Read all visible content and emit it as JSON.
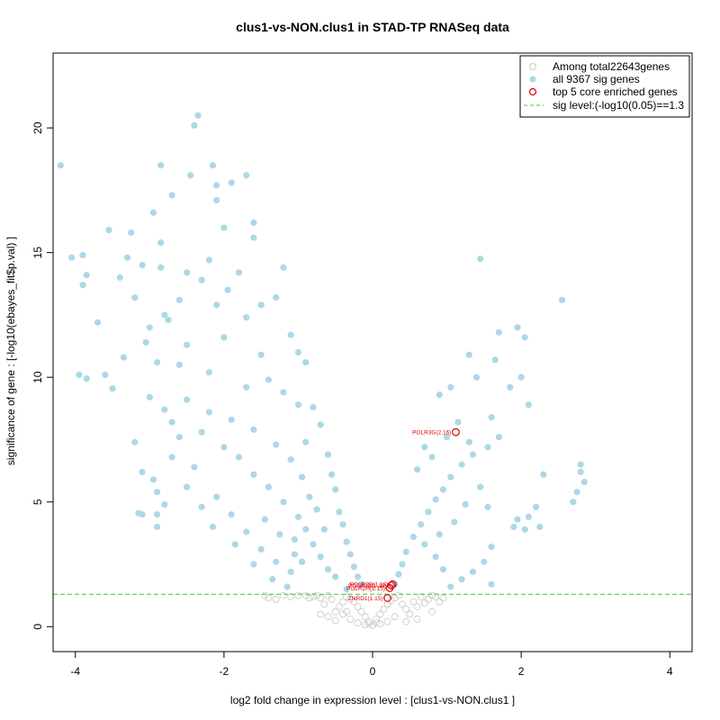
{
  "chart_data": {
    "type": "scatter",
    "title": "clus1-vs-NON.clus1 in STAD-TP RNASeq data",
    "xlabel": "log2 fold change in expression level : [clus1-vs-NON.clus1 ]",
    "ylabel": "significance of gene : [-log10(ebayes_fit$p.val) ]",
    "xlim": [
      -4.3,
      4.3
    ],
    "ylim": [
      -1.0,
      23.0
    ],
    "x_ticks": [
      -4,
      -2,
      0,
      2,
      4
    ],
    "y_ticks": [
      0,
      5,
      10,
      15,
      20
    ],
    "grid": false,
    "legend_position": "top-right",
    "legend": [
      "Among total22643genes",
      "all 9367 sig genes",
      "top 5 core enriched genes",
      "sig level:(-log10(0.05)==1.3"
    ],
    "sig_level": 1.3,
    "colors": {
      "nonsig": "#c8c8c8",
      "sig": "#add8e6",
      "top": "#e00000",
      "threshold": "#33cc33"
    },
    "series": [
      {
        "name": "all 9367 sig genes",
        "points": [
          [
            -4.2,
            18.5
          ],
          [
            -4.05,
            14.8
          ],
          [
            -3.9,
            14.9
          ],
          [
            -3.9,
            13.7
          ],
          [
            -3.85,
            14.1
          ],
          [
            -3.95,
            10.1
          ],
          [
            -3.85,
            9.95
          ],
          [
            -3.55,
            15.9
          ],
          [
            -3.7,
            12.2
          ],
          [
            -3.6,
            10.1
          ],
          [
            -3.5,
            9.55
          ],
          [
            -3.4,
            14.0
          ],
          [
            -3.3,
            14.8
          ],
          [
            -3.25,
            15.8
          ],
          [
            -3.2,
            13.2
          ],
          [
            -3.1,
            14.5
          ],
          [
            -3.35,
            10.8
          ],
          [
            -3.2,
            7.4
          ],
          [
            -3.1,
            6.2
          ],
          [
            -3.15,
            4.55
          ],
          [
            -3.1,
            4.5
          ],
          [
            -2.95,
            16.6
          ],
          [
            -2.85,
            18.5
          ],
          [
            -2.85,
            15.4
          ],
          [
            -2.7,
            17.3
          ],
          [
            -2.85,
            14.4
          ],
          [
            -2.8,
            12.5
          ],
          [
            -2.95,
            5.9
          ],
          [
            -2.9,
            5.4
          ],
          [
            -2.9,
            4.5
          ],
          [
            -2.9,
            4.0
          ],
          [
            -2.8,
            4.9
          ],
          [
            -2.4,
            20.1
          ],
          [
            -2.35,
            20.5
          ],
          [
            -2.45,
            18.1
          ],
          [
            -2.15,
            18.5
          ],
          [
            -2.1,
            17.7
          ],
          [
            -2.1,
            17.1
          ],
          [
            -1.9,
            17.8
          ],
          [
            -1.7,
            18.1
          ],
          [
            -2.0,
            16.0
          ],
          [
            -1.6,
            16.2
          ],
          [
            -1.6,
            15.6
          ],
          [
            -1.2,
            14.4
          ],
          [
            -2.3,
            13.9
          ],
          [
            -1.8,
            14.2
          ],
          [
            -1.5,
            12.9
          ],
          [
            -1.3,
            13.2
          ],
          [
            -1.1,
            11.7
          ],
          [
            -1.0,
            11.0
          ],
          [
            -0.9,
            10.6
          ],
          [
            -2.5,
            11.3
          ],
          [
            -2.2,
            10.2
          ],
          [
            -1.7,
            9.6
          ],
          [
            -1.4,
            9.9
          ],
          [
            -0.8,
            8.8
          ],
          [
            -0.7,
            8.1
          ],
          [
            -0.6,
            6.9
          ],
          [
            -0.55,
            6.1
          ],
          [
            -0.5,
            5.5
          ],
          [
            -0.45,
            4.6
          ],
          [
            -0.4,
            4.1
          ],
          [
            -0.35,
            3.4
          ],
          [
            -0.3,
            2.9
          ],
          [
            -0.25,
            2.4
          ],
          [
            -0.2,
            2.0
          ],
          [
            -0.15,
            1.7
          ],
          [
            -2.6,
            7.6
          ],
          [
            -2.4,
            6.4
          ],
          [
            -2.1,
            5.2
          ],
          [
            -1.9,
            4.5
          ],
          [
            -1.7,
            3.8
          ],
          [
            -1.5,
            3.1
          ],
          [
            -1.3,
            2.6
          ],
          [
            -1.1,
            2.2
          ],
          [
            -2.7,
            8.2
          ],
          [
            -2.3,
            7.8
          ],
          [
            -2.0,
            7.2
          ],
          [
            -1.8,
            6.8
          ],
          [
            -1.6,
            6.1
          ],
          [
            -1.4,
            5.6
          ],
          [
            -1.2,
            5.0
          ],
          [
            -1.0,
            4.4
          ],
          [
            -0.9,
            3.9
          ],
          [
            -0.8,
            3.3
          ],
          [
            -0.7,
            2.8
          ],
          [
            -0.6,
            2.3
          ],
          [
            -2.5,
            9.1
          ],
          [
            -2.2,
            8.6
          ],
          [
            -1.9,
            8.3
          ],
          [
            -1.6,
            7.9
          ],
          [
            -1.3,
            7.3
          ],
          [
            -1.1,
            6.7
          ],
          [
            -0.95,
            6.0
          ],
          [
            -0.85,
            5.2
          ],
          [
            -0.75,
            4.7
          ],
          [
            -0.65,
            3.9
          ],
          [
            -3.0,
            9.2
          ],
          [
            -2.8,
            8.7
          ],
          [
            -2.6,
            10.5
          ],
          [
            -2.0,
            11.6
          ],
          [
            -1.5,
            10.9
          ],
          [
            -1.2,
            9.4
          ],
          [
            -1.0,
            8.9
          ],
          [
            -0.9,
            7.4
          ],
          [
            -2.9,
            10.6
          ],
          [
            -3.05,
            11.4
          ],
          [
            -3.0,
            12.0
          ],
          [
            -2.75,
            12.3
          ],
          [
            -2.6,
            13.1
          ],
          [
            -2.1,
            12.9
          ],
          [
            -1.7,
            12.4
          ],
          [
            -2.2,
            14.7
          ],
          [
            -2.5,
            14.2
          ],
          [
            -1.95,
            13.5
          ],
          [
            -2.15,
            4.0
          ],
          [
            -2.3,
            4.8
          ],
          [
            -2.5,
            5.6
          ],
          [
            -2.7,
            6.8
          ],
          [
            -1.85,
            3.3
          ],
          [
            -1.6,
            2.5
          ],
          [
            -1.35,
            1.9
          ],
          [
            -1.15,
            1.6
          ],
          [
            -1.05,
            2.9
          ],
          [
            -0.5,
            2.0
          ],
          [
            -1.45,
            4.3
          ],
          [
            -1.25,
            3.7
          ],
          [
            -1.05,
            3.5
          ],
          [
            -0.95,
            2.6
          ],
          [
            -0.35,
            1.5
          ],
          [
            2.55,
            13.1
          ],
          [
            1.45,
            14.75
          ],
          [
            1.7,
            11.8
          ],
          [
            1.95,
            12.0
          ],
          [
            2.05,
            11.6
          ],
          [
            1.65,
            10.7
          ],
          [
            1.3,
            10.9
          ],
          [
            2.0,
            10.0
          ],
          [
            1.85,
            9.6
          ],
          [
            2.1,
            8.9
          ],
          [
            1.4,
            10.0
          ],
          [
            1.05,
            9.6
          ],
          [
            0.9,
            9.3
          ],
          [
            1.6,
            8.4
          ],
          [
            1.7,
            7.6
          ],
          [
            1.55,
            7.2
          ],
          [
            1.35,
            6.9
          ],
          [
            1.2,
            6.5
          ],
          [
            1.05,
            6.0
          ],
          [
            0.95,
            5.5
          ],
          [
            0.85,
            5.1
          ],
          [
            0.75,
            4.6
          ],
          [
            0.65,
            4.1
          ],
          [
            0.55,
            3.6
          ],
          [
            0.45,
            3.0
          ],
          [
            0.4,
            2.5
          ],
          [
            0.35,
            2.1
          ],
          [
            0.3,
            1.7
          ],
          [
            2.8,
            6.5
          ],
          [
            2.8,
            6.2
          ],
          [
            2.75,
            5.4
          ],
          [
            2.7,
            5.0
          ],
          [
            2.85,
            5.8
          ],
          [
            2.3,
            6.1
          ],
          [
            2.2,
            4.8
          ],
          [
            2.1,
            4.4
          ],
          [
            2.05,
            3.9
          ],
          [
            1.95,
            4.3
          ],
          [
            1.9,
            4.0
          ],
          [
            1.55,
            4.8
          ],
          [
            1.6,
            3.2
          ],
          [
            1.5,
            2.6
          ],
          [
            1.35,
            2.2
          ],
          [
            1.2,
            1.9
          ],
          [
            1.05,
            1.6
          ],
          [
            0.95,
            2.3
          ],
          [
            0.85,
            2.8
          ],
          [
            0.7,
            3.3
          ],
          [
            0.6,
            6.3
          ],
          [
            0.7,
            7.2
          ],
          [
            0.8,
            6.8
          ],
          [
            1.0,
            7.6
          ],
          [
            1.15,
            8.2
          ],
          [
            1.3,
            7.4
          ],
          [
            2.25,
            4.0
          ],
          [
            1.6,
            1.7
          ],
          [
            1.45,
            5.6
          ],
          [
            1.25,
            4.9
          ],
          [
            1.1,
            4.2
          ],
          [
            0.9,
            3.7
          ]
        ]
      },
      {
        "name": "Among total22643genes",
        "points": [
          [
            0.0,
            0.05
          ],
          [
            -0.05,
            0.2
          ],
          [
            0.05,
            0.3
          ],
          [
            -0.1,
            0.4
          ],
          [
            0.1,
            0.5
          ],
          [
            -0.15,
            0.6
          ],
          [
            0.15,
            0.7
          ],
          [
            -0.2,
            0.8
          ],
          [
            0.2,
            0.9
          ],
          [
            -0.25,
            1.0
          ],
          [
            0.25,
            1.05
          ],
          [
            -0.3,
            1.1
          ],
          [
            0.3,
            1.15
          ],
          [
            -0.35,
            1.2
          ],
          [
            0.35,
            1.25
          ],
          [
            -0.4,
            1.0
          ],
          [
            0.4,
            0.9
          ],
          [
            -0.45,
            0.8
          ],
          [
            0.45,
            0.7
          ],
          [
            -0.5,
            0.6
          ],
          [
            0.5,
            0.5
          ],
          [
            -0.55,
            1.1
          ],
          [
            0.55,
            1.0
          ],
          [
            -0.6,
            1.25
          ],
          [
            0.6,
            0.8
          ],
          [
            -0.65,
            0.9
          ],
          [
            0.65,
            1.2
          ],
          [
            -0.7,
            1.15
          ],
          [
            0.7,
            0.95
          ],
          [
            -0.75,
            1.25
          ],
          [
            0.75,
            1.1
          ],
          [
            -0.8,
            1.2
          ],
          [
            0.8,
            1.25
          ],
          [
            -0.85,
            1.15
          ],
          [
            0.85,
            1.2
          ],
          [
            -0.9,
            1.25
          ],
          [
            -1.0,
            1.25
          ],
          [
            -1.1,
            1.2
          ],
          [
            -1.2,
            1.25
          ],
          [
            -1.3,
            1.1
          ],
          [
            -1.4,
            1.15
          ],
          [
            -1.45,
            1.25
          ],
          [
            0.9,
            1.0
          ],
          [
            0.95,
            1.15
          ],
          [
            0.8,
            0.6
          ],
          [
            -0.3,
            0.3
          ],
          [
            0.3,
            0.4
          ],
          [
            -0.4,
            0.5
          ],
          [
            0.2,
            0.2
          ],
          [
            -0.2,
            0.15
          ],
          [
            0.1,
            0.1
          ],
          [
            -0.1,
            0.08
          ],
          [
            -0.05,
            0.12
          ],
          [
            0.05,
            0.15
          ],
          [
            -0.35,
            0.6
          ],
          [
            0.6,
            0.3
          ],
          [
            -0.6,
            0.4
          ],
          [
            0.45,
            0.2
          ],
          [
            -0.5,
            0.25
          ],
          [
            -0.7,
            0.5
          ]
        ]
      }
    ],
    "top_genes": [
      {
        "label": "POLR3G(2.16)",
        "x": 1.12,
        "y": 7.8
      },
      {
        "label": "POLR2B(1.18)",
        "x": 0.27,
        "y": 1.7
      },
      {
        "label": "POLR3B(1.19)",
        "x": 0.25,
        "y": 1.65
      },
      {
        "label": "POLR2H(1.15)",
        "x": 0.23,
        "y": 1.55
      },
      {
        "label": "ZNRD1(1.15)",
        "x": 0.2,
        "y": 1.15
      }
    ]
  }
}
